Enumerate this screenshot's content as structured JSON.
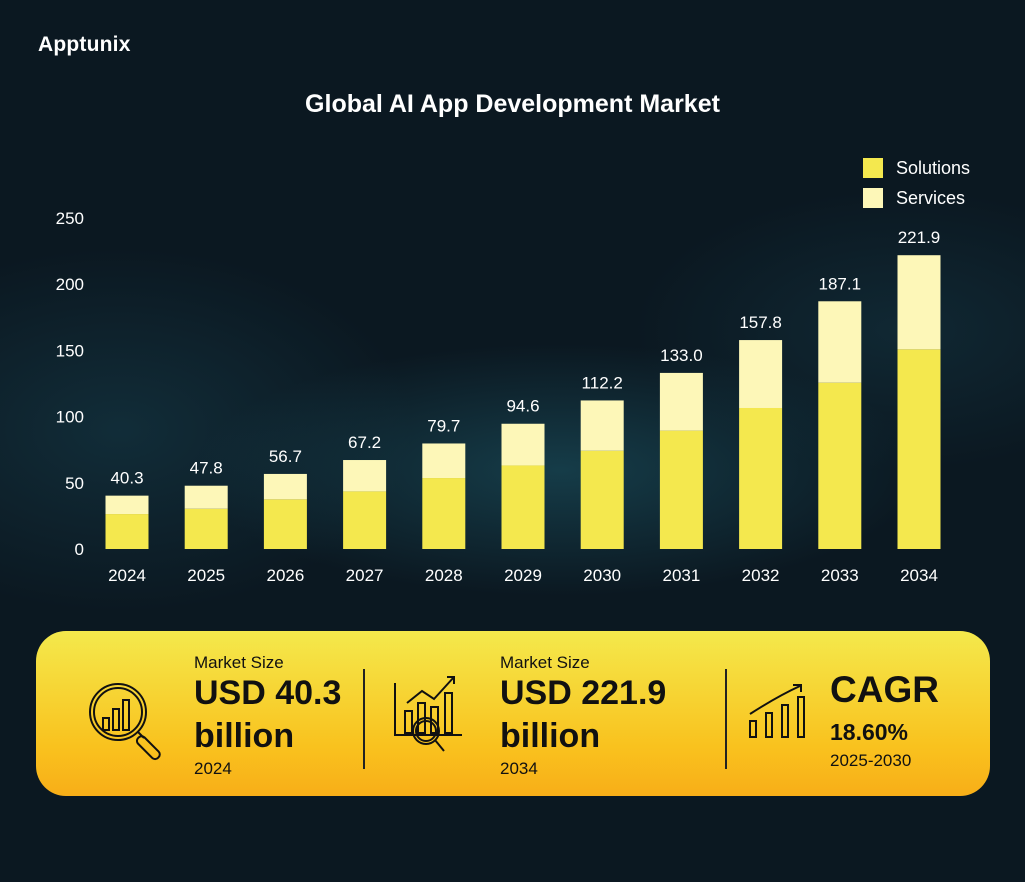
{
  "brand": "Apptunix",
  "chart_data": {
    "type": "bar",
    "stacked": true,
    "title": "Global AI App Development Market",
    "categories": [
      "2024",
      "2025",
      "2026",
      "2027",
      "2028",
      "2029",
      "2030",
      "2031",
      "2032",
      "2033",
      "2034"
    ],
    "totals": [
      40.3,
      47.8,
      56.7,
      67.2,
      79.7,
      94.6,
      112.2,
      133.0,
      157.8,
      187.1,
      221.9
    ],
    "total_labels": [
      "40.3",
      "47.8",
      "56.7",
      "67.2",
      "79.7",
      "94.6",
      "112.2",
      "133.0",
      "157.8",
      "187.1",
      "221.9"
    ],
    "series": [
      {
        "name": "Solutions",
        "color": "#f4e84e",
        "values": [
          26.4,
          30.4,
          37.5,
          43.5,
          53.6,
          63.1,
          74.2,
          89.4,
          106.5,
          125.6,
          150.8
        ]
      },
      {
        "name": "Services",
        "color": "#fdf7b8",
        "values": [
          13.9,
          17.4,
          19.2,
          23.7,
          26.1,
          31.5,
          38.0,
          43.6,
          51.3,
          61.5,
          71.1
        ]
      }
    ],
    "ylim": [
      0,
      250
    ],
    "yticks": [
      "0",
      "50",
      "100",
      "150",
      "200",
      "250"
    ],
    "grid": false,
    "legend": "top-right"
  },
  "stats": [
    {
      "label": "Market Size",
      "value": "USD 40.3",
      "unit": "billion",
      "year": "2024",
      "icon": "magnifier-chart-icon"
    },
    {
      "label": "Market Size",
      "value": "USD 221.9",
      "unit": "billion",
      "year": "2034",
      "icon": "chart-analysis-icon"
    },
    {
      "label": "CAGR",
      "value": "18.60%",
      "year": "2025-2030",
      "icon": "growth-bars-icon"
    }
  ]
}
